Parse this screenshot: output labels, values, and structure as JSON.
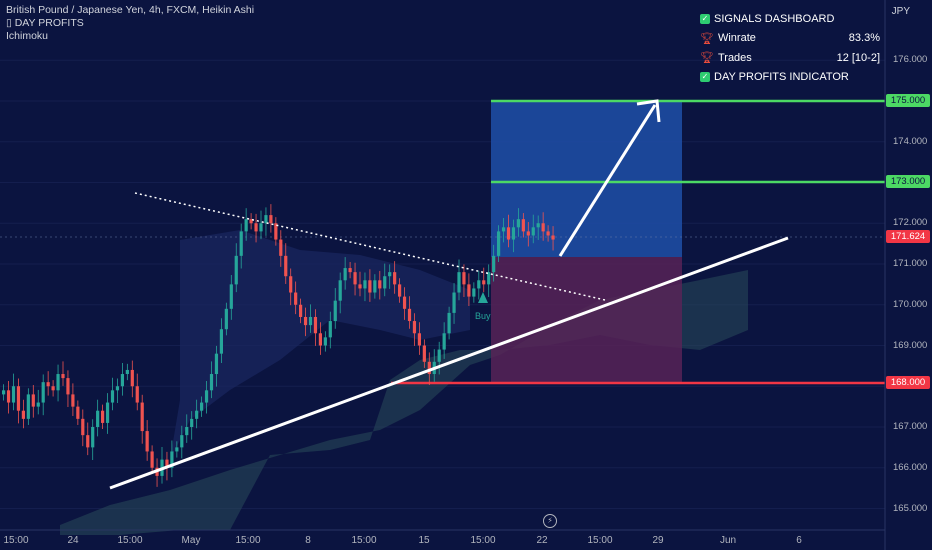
{
  "symbol_info": {
    "title": "British Pound / Japanese Yen, 4h, FXCM, Heikin Ashi",
    "indicator_1": "▯ DAY PROFITS",
    "indicator_2": "Ichimoku"
  },
  "dashboard": {
    "title": "SIGNALS DASHBOARD",
    "winrate_label": "Winrate",
    "winrate_value": "83.3%",
    "trades_label": "Trades",
    "trades_value": "12 [10-2]",
    "indicator_label": "DAY PROFITS INDICATOR"
  },
  "price_axis": {
    "currency": "JPY",
    "ticks": [
      "176.000",
      "175.000",
      "174.000",
      "173.000",
      "172.000",
      "171.000",
      "170.000",
      "169.000",
      "168.000",
      "167.000",
      "166.000",
      "165.000"
    ]
  },
  "price_tags": {
    "tp2": "175.000",
    "tp1": "173.000",
    "current": "171.624",
    "stop": "168.000"
  },
  "time_axis": {
    "labels": [
      "15:00",
      "24",
      "15:00",
      "May",
      "15:00",
      "8",
      "15:00",
      "15",
      "15:00",
      "22",
      "15:00",
      "29",
      "Jun",
      "6"
    ]
  },
  "signal": {
    "buy_label": "Buy"
  },
  "colors": {
    "background": "#0b1440",
    "up_candle": "#26a69a",
    "down_candle": "#ef5350",
    "take_profit_line": "#4cd964",
    "stop_line": "#f23645",
    "profit_zone": "#1f4fa8",
    "loss_zone": "#5b2358",
    "cloud": "#2a4a5a"
  },
  "chart_data": {
    "type": "candlestick",
    "symbol": "GBPJPY",
    "interval": "4h",
    "ylim": [
      164.7,
      176.4
    ],
    "levels": {
      "entry": 171.1,
      "take_profit_1": 173.0,
      "take_profit_2": 175.0,
      "stop_loss": 168.0,
      "current_price": 171.624
    },
    "candles_close": [
      167.9,
      167.6,
      168.0,
      167.4,
      167.2,
      167.8,
      167.5,
      167.6,
      168.1,
      168.0,
      167.9,
      168.3,
      168.2,
      167.8,
      167.5,
      167.2,
      166.8,
      166.5,
      167.0,
      167.4,
      167.1,
      167.6,
      167.9,
      168.0,
      168.3,
      168.4,
      168.0,
      167.6,
      166.9,
      166.4,
      166.0,
      165.8,
      166.2,
      166.0,
      166.4,
      166.5,
      166.8,
      167.0,
      167.2,
      167.4,
      167.6,
      167.9,
      168.3,
      168.8,
      169.4,
      169.9,
      170.5,
      171.2,
      171.8,
      172.1,
      172.0,
      171.8,
      172.0,
      172.2,
      172.0,
      171.6,
      171.2,
      170.7,
      170.3,
      170.0,
      169.7,
      169.5,
      169.7,
      169.3,
      169.0,
      169.2,
      169.6,
      170.1,
      170.6,
      170.9,
      170.8,
      170.5,
      170.4,
      170.6,
      170.3,
      170.6,
      170.4,
      170.7,
      170.8,
      170.5,
      170.2,
      169.9,
      169.6,
      169.3,
      169.0,
      168.6,
      168.3,
      168.6,
      168.9,
      169.3,
      169.8,
      170.3,
      170.8,
      170.5,
      170.2,
      170.4,
      170.6,
      170.5,
      170.8,
      171.2,
      171.8,
      171.9,
      171.6,
      171.9,
      172.1,
      171.8,
      171.7,
      171.9,
      172.0,
      171.8,
      171.7,
      171.6
    ]
  }
}
